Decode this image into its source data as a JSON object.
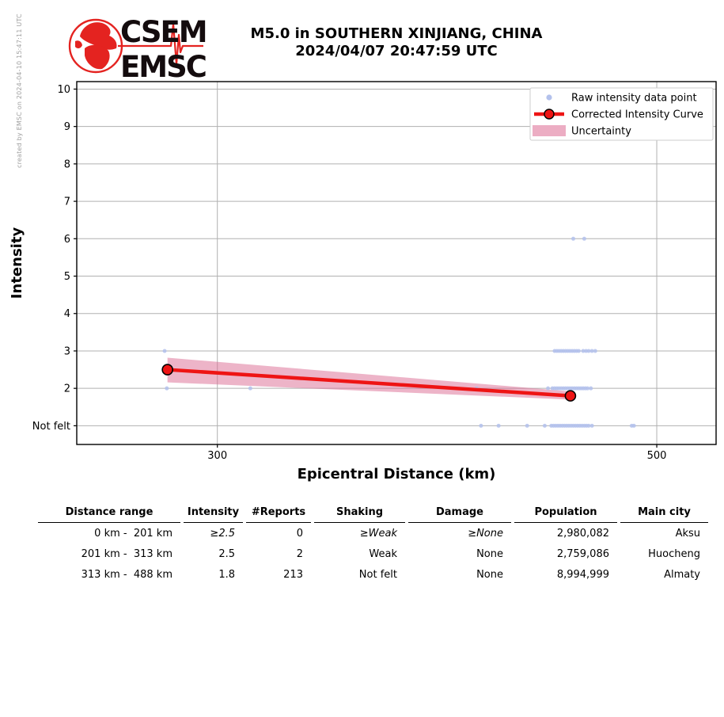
{
  "credit": "created by EMSC on 2024-04-10 15:47:11 UTC",
  "logo": {
    "line1": "CSEM",
    "line2": "EMSC",
    "brand_color": "#e42320",
    "text_color": "#140c0e"
  },
  "title": {
    "line1": "M5.0 in SOUTHERN XINJIANG, CHINA",
    "line2": "2024/04/07 20:47:59 UTC"
  },
  "chart_data": {
    "type": "scatter",
    "xlabel": "Epicentral Distance (km)",
    "ylabel": "Intensity",
    "xlim": [
      236,
      527
    ],
    "ylim": [
      0.5,
      10.2
    ],
    "grid": true,
    "x_ticks": [
      {
        "value": 300,
        "label": "300"
      },
      {
        "value": 500,
        "label": "500"
      }
    ],
    "y_ticks": [
      {
        "value": 10,
        "label": "10"
      },
      {
        "value": 9,
        "label": "9"
      },
      {
        "value": 8,
        "label": "8"
      },
      {
        "value": 7,
        "label": "7"
      },
      {
        "value": 6,
        "label": "6"
      },
      {
        "value": 5,
        "label": "5"
      },
      {
        "value": 4,
        "label": "4"
      },
      {
        "value": 3,
        "label": "3"
      },
      {
        "value": 2,
        "label": "2"
      },
      {
        "value": 1,
        "label": "Not felt"
      }
    ],
    "legend": [
      {
        "label": "Raw intensity data point",
        "marker": "dot"
      },
      {
        "label": "Corrected Intensity Curve",
        "marker": "line"
      },
      {
        "label": "Uncertainty",
        "marker": "patch"
      }
    ],
    "colors": {
      "raw_point": "#b3c1ec",
      "curve": "#ee1414",
      "curve_marker_edge": "#000000",
      "band": "#dc6a92",
      "band_opacity": 0.5,
      "grid": "#b0b0b0",
      "frame": "#000000"
    },
    "raw_points": [
      [
        462,
        6
      ],
      [
        467,
        6
      ],
      [
        276,
        3
      ],
      [
        453.5,
        3
      ],
      [
        454.5,
        3
      ],
      [
        455.5,
        3
      ],
      [
        456.5,
        3
      ],
      [
        457.5,
        3
      ],
      [
        458.5,
        3
      ],
      [
        459.5,
        3
      ],
      [
        460.5,
        3
      ],
      [
        461.5,
        3
      ],
      [
        462.5,
        3
      ],
      [
        463.5,
        3
      ],
      [
        464.5,
        3
      ],
      [
        466.5,
        3
      ],
      [
        467.8,
        3
      ],
      [
        469,
        3
      ],
      [
        470.5,
        3
      ],
      [
        472,
        3
      ],
      [
        277,
        2
      ],
      [
        315,
        2
      ],
      [
        418,
        2
      ],
      [
        450.5,
        2
      ],
      [
        452.5,
        2
      ],
      [
        453.5,
        2
      ],
      [
        454.5,
        2
      ],
      [
        455.5,
        2
      ],
      [
        456.5,
        2
      ],
      [
        457.5,
        2
      ],
      [
        458.5,
        2
      ],
      [
        459.5,
        2
      ],
      [
        460.5,
        2
      ],
      [
        461.5,
        2
      ],
      [
        462.5,
        2
      ],
      [
        463.5,
        2
      ],
      [
        464.5,
        2
      ],
      [
        465.5,
        2
      ],
      [
        466.5,
        2
      ],
      [
        467.5,
        2
      ],
      [
        468.5,
        2
      ],
      [
        470,
        2
      ],
      [
        420,
        1
      ],
      [
        428,
        1
      ],
      [
        441,
        1
      ],
      [
        449,
        1
      ],
      [
        452,
        1
      ],
      [
        453,
        1
      ],
      [
        454,
        1
      ],
      [
        455,
        1
      ],
      [
        456,
        1
      ],
      [
        457,
        1
      ],
      [
        458,
        1
      ],
      [
        459,
        1
      ],
      [
        460,
        1
      ],
      [
        461,
        1
      ],
      [
        462,
        1
      ],
      [
        463,
        1
      ],
      [
        464,
        1
      ],
      [
        465,
        1
      ],
      [
        466,
        1
      ],
      [
        467,
        1
      ],
      [
        468,
        1
      ],
      [
        469,
        1
      ],
      [
        470.5,
        1
      ],
      [
        488.6,
        1
      ],
      [
        489.6,
        1
      ]
    ],
    "corrected_curve": [
      [
        277.3,
        2.5
      ],
      [
        460.7,
        1.8
      ]
    ],
    "uncertainty_band": {
      "upper": [
        [
          277.3,
          2.82
        ],
        [
          460.7,
          1.92
        ]
      ],
      "lower": [
        [
          277.3,
          2.16
        ],
        [
          460.7,
          1.7
        ]
      ]
    }
  },
  "table": {
    "headers": [
      "Distance range",
      "Intensity",
      "#Reports",
      "Shaking",
      "Damage",
      "Population",
      "Main city"
    ],
    "rows": [
      {
        "distance_range": "0 km -  201 km",
        "intensity": "≥2.5",
        "reports": "0",
        "shaking": "≥Weak",
        "damage": "≥None",
        "population": "2,980,082",
        "main_city": "Aksu",
        "estimated": true
      },
      {
        "distance_range": "201 km -  313 km",
        "intensity": "2.5",
        "reports": "2",
        "shaking": "Weak",
        "damage": "None",
        "population": "2,759,086",
        "main_city": "Huocheng",
        "estimated": false
      },
      {
        "distance_range": "313 km -  488 km",
        "intensity": "1.8",
        "reports": "213",
        "shaking": "Not felt",
        "damage": "None",
        "population": "8,994,999",
        "main_city": "Almaty",
        "estimated": false
      }
    ]
  }
}
